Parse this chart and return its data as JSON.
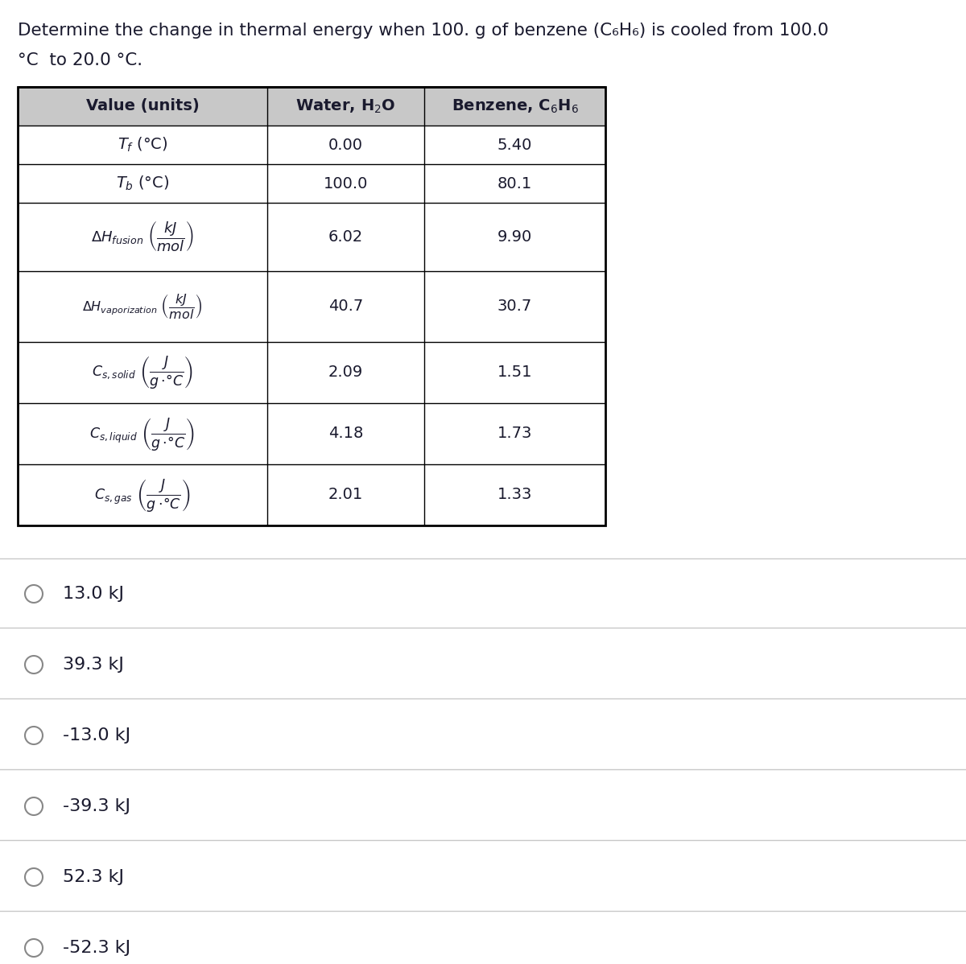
{
  "title_line1": "Determine the change in thermal energy when 100. g of benzene (C₆H₆) is cooled from 100.0",
  "title_line2": "°C  to 20.0 °C.",
  "water_values": [
    "0.00",
    "100.0",
    "6.02",
    "40.7",
    "2.09",
    "4.18",
    "2.01"
  ],
  "benzene_values": [
    "5.40",
    "80.1",
    "9.90",
    "30.7",
    "1.51",
    "1.73",
    "1.33"
  ],
  "answer_choices": [
    "13.0 kJ",
    "39.3 kJ",
    "-13.0 kJ",
    "-39.3 kJ",
    "52.3 kJ",
    "-52.3 kJ"
  ],
  "bg_color": "#ffffff",
  "header_bg": "#c8c8c8",
  "table_border": "#000000",
  "text_color": "#1a1a2e",
  "separator_color": "#c8c8c8",
  "title_fontsize": 15.5,
  "header_fontsize": 14,
  "cell_fontsize": 14,
  "answer_fontsize": 16,
  "radio_color": "#888888"
}
